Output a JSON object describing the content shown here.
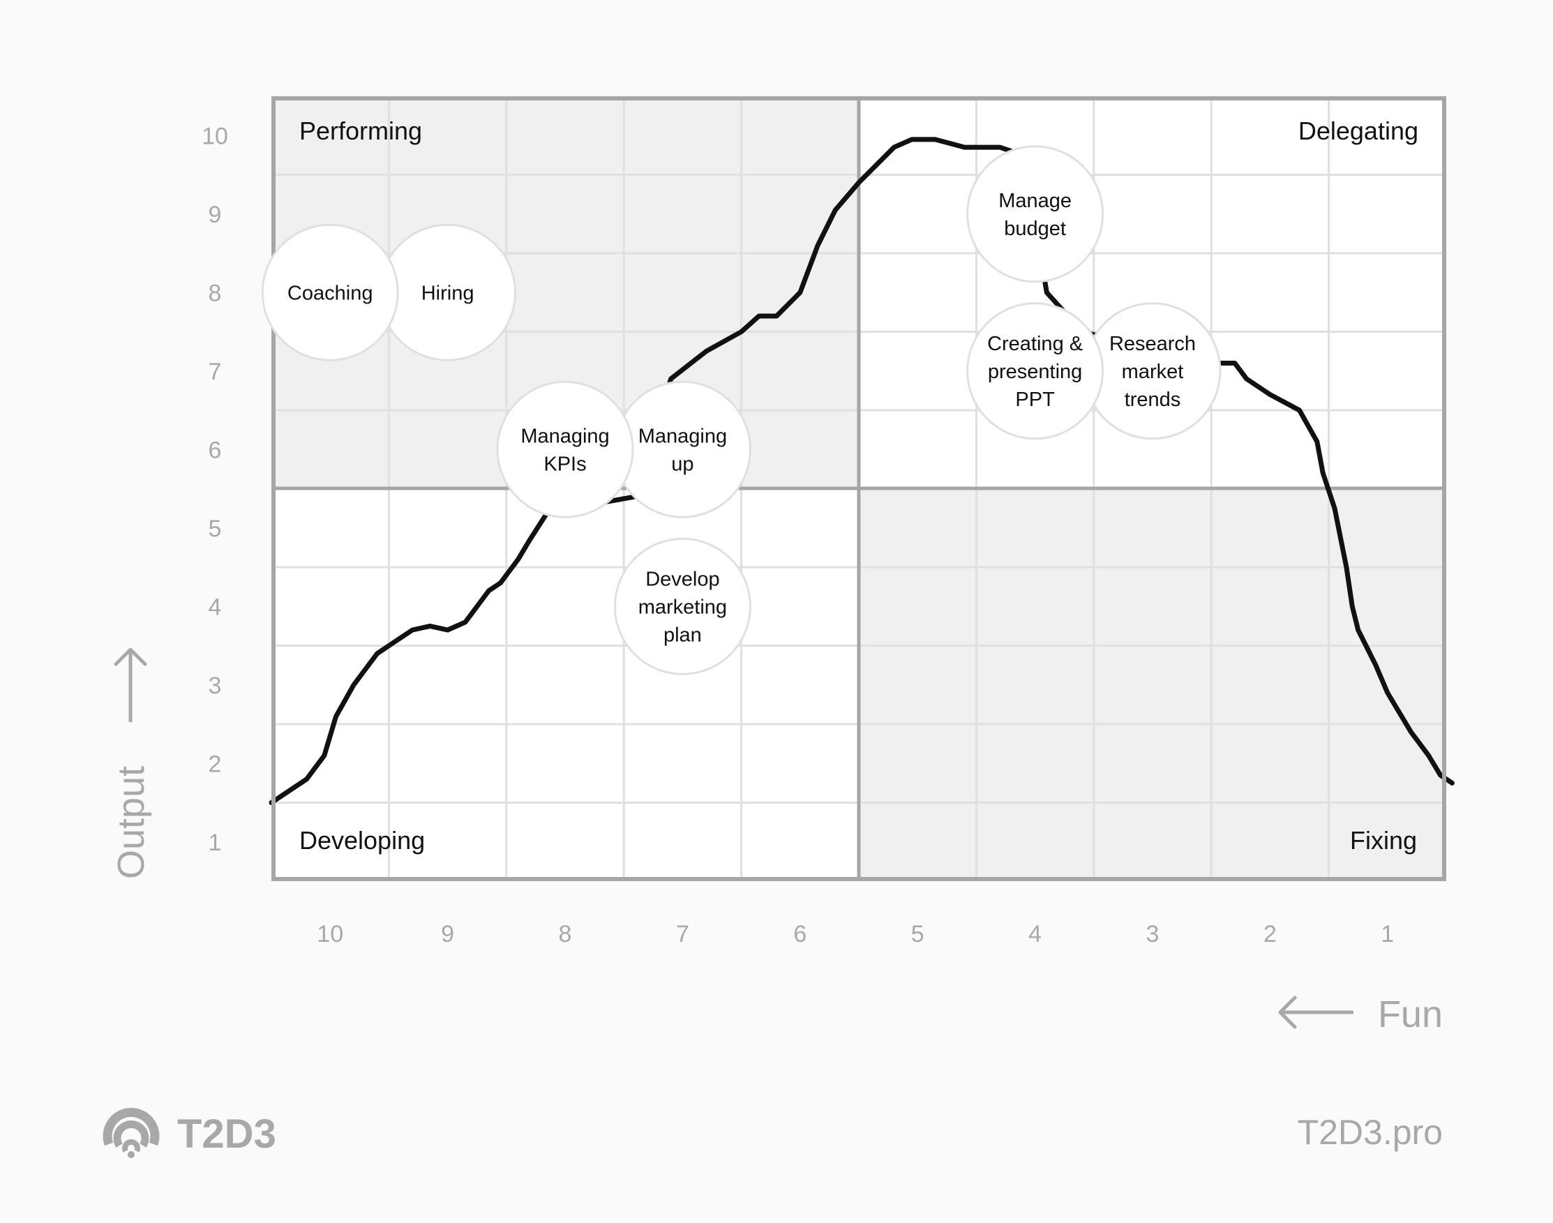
{
  "chart_data": {
    "type": "scatter",
    "title": "",
    "xlabel": "Fun",
    "ylabel": "Output",
    "x_direction": "reversed",
    "xlim": [
      10.5,
      0.5
    ],
    "ylim": [
      0.5,
      10.5
    ],
    "x_ticks": [
      "10",
      "9",
      "8",
      "7",
      "6",
      "5",
      "4",
      "3",
      "2",
      "1"
    ],
    "y_ticks": [
      "10",
      "9",
      "8",
      "7",
      "6",
      "5",
      "4",
      "3",
      "2",
      "1"
    ],
    "grid": true,
    "quadrants": [
      {
        "label": "Performing",
        "position": "top-left",
        "fill": "#f0f0f0"
      },
      {
        "label": "Delegating",
        "position": "top-right",
        "fill": "#ffffff"
      },
      {
        "label": "Developing",
        "position": "bottom-left",
        "fill": "#ffffff"
      },
      {
        "label": "Fixing",
        "position": "bottom-right",
        "fill": "#f0f0f0"
      }
    ],
    "points": [
      {
        "label": "Coaching",
        "lines": [
          "Coaching"
        ],
        "fun": 10,
        "output": 8
      },
      {
        "label": "Hiring",
        "lines": [
          "Hiring"
        ],
        "fun": 9,
        "output": 8
      },
      {
        "label": "Managing KPIs",
        "lines": [
          "Managing",
          "KPIs"
        ],
        "fun": 8,
        "output": 6
      },
      {
        "label": "Managing up",
        "lines": [
          "Managing",
          "up"
        ],
        "fun": 7,
        "output": 6
      },
      {
        "label": "Develop marketing plan",
        "lines": [
          "Develop",
          "marketing",
          "plan"
        ],
        "fun": 7,
        "output": 4
      },
      {
        "label": "Manage budget",
        "lines": [
          "Manage",
          "budget"
        ],
        "fun": 4,
        "output": 9
      },
      {
        "label": "Creating & presenting PPT",
        "lines": [
          "Creating &",
          "presenting",
          "PPT"
        ],
        "fun": 4,
        "output": 7
      },
      {
        "label": "Research market trends",
        "lines": [
          "Research",
          "market",
          "trends"
        ],
        "fun": 3,
        "output": 7
      }
    ],
    "curve": {
      "description": "hand-drawn line rising from bottom-left, peaking near top at Fun~5, descending to bottom-right",
      "points": [
        [
          10.5,
          1.5
        ],
        [
          10.2,
          1.8
        ],
        [
          10.05,
          2.1
        ],
        [
          9.95,
          2.6
        ],
        [
          9.8,
          3.0
        ],
        [
          9.6,
          3.4
        ],
        [
          9.5,
          3.5
        ],
        [
          9.3,
          3.7
        ],
        [
          9.15,
          3.75
        ],
        [
          9.0,
          3.7
        ],
        [
          8.85,
          3.8
        ],
        [
          8.65,
          4.2
        ],
        [
          8.55,
          4.3
        ],
        [
          8.4,
          4.6
        ],
        [
          8.3,
          4.85
        ],
        [
          8.15,
          5.2
        ],
        [
          7.4,
          5.4
        ],
        [
          7.1,
          6.9
        ],
        [
          6.8,
          7.25
        ],
        [
          6.5,
          7.5
        ],
        [
          6.35,
          7.7
        ],
        [
          6.2,
          7.7
        ],
        [
          6.0,
          8.0
        ],
        [
          5.85,
          8.6
        ],
        [
          5.7,
          9.05
        ],
        [
          5.5,
          9.4
        ],
        [
          5.2,
          9.85
        ],
        [
          5.05,
          9.95
        ],
        [
          4.85,
          9.95
        ],
        [
          4.6,
          9.85
        ],
        [
          4.3,
          9.85
        ],
        [
          4.1,
          9.75
        ],
        [
          3.9,
          8.0
        ],
        [
          3.6,
          7.5
        ],
        [
          2.5,
          7.1
        ],
        [
          2.3,
          7.1
        ],
        [
          2.2,
          6.9
        ],
        [
          2.0,
          6.7
        ],
        [
          1.75,
          6.5
        ],
        [
          1.6,
          6.1
        ],
        [
          1.55,
          5.7
        ],
        [
          1.45,
          5.25
        ],
        [
          1.35,
          4.5
        ],
        [
          1.3,
          4.0
        ],
        [
          1.25,
          3.7
        ],
        [
          1.1,
          3.25
        ],
        [
          1.0,
          2.9
        ],
        [
          0.8,
          2.4
        ],
        [
          0.65,
          2.1
        ],
        [
          0.55,
          1.85
        ],
        [
          0.45,
          1.75
        ]
      ]
    }
  },
  "axes": {
    "y_title": "Output",
    "x_title": "Fun"
  },
  "footer": {
    "brand": "T2D3",
    "site": "T2D3.pro"
  },
  "colors": {
    "background": "#fafafa",
    "frame": "#a6a6a6",
    "grid": "#e0e0e0",
    "shaded_quadrant": "#f0f0f0",
    "axis_text": "#a8a8a8",
    "curve": "#111111",
    "bubble_fill": "#ffffff",
    "bubble_stroke": "#e0e0e0"
  }
}
